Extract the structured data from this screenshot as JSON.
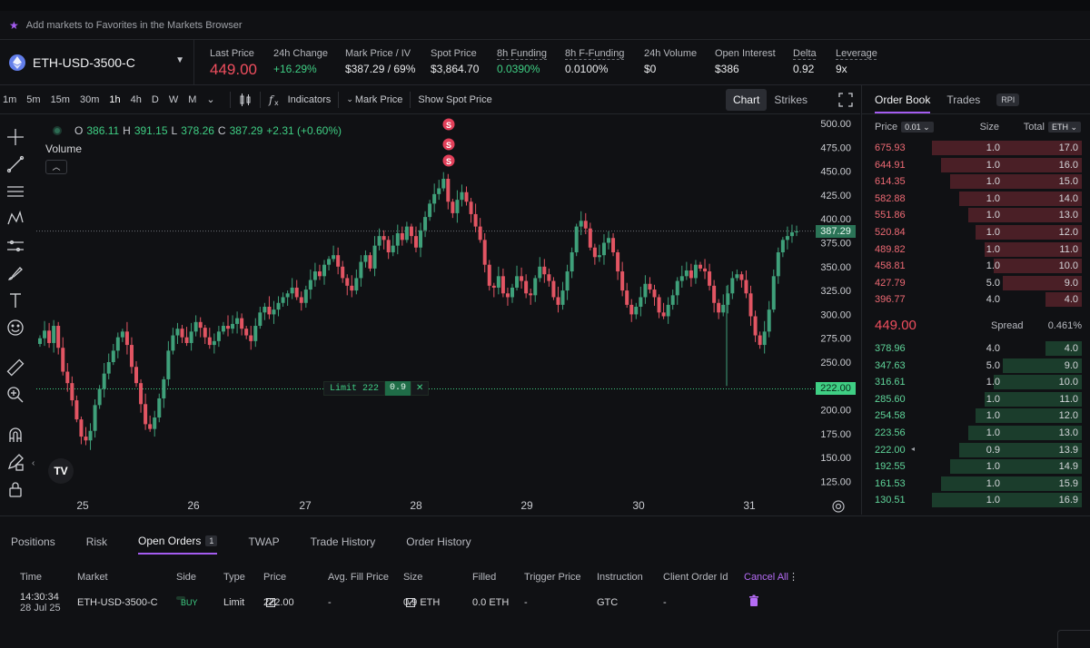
{
  "favorites_bar": {
    "text": "Add markets to Favorites in the Markets Browser"
  },
  "market": {
    "name": "ETH-USD-3500-C",
    "icon": "ethereum-icon"
  },
  "stats": [
    {
      "label": "Last Price",
      "value": "449.00",
      "style": "big"
    },
    {
      "label": "24h Change",
      "value": "+16.29%",
      "style": "green"
    },
    {
      "label": "Mark Price / IV",
      "value": "$387.29 / 69%",
      "style": "normal"
    },
    {
      "label": "Spot Price",
      "value": "$3,864.70",
      "style": "normal"
    },
    {
      "label": "8h Funding",
      "value": "0.0390%",
      "style": "green"
    },
    {
      "label": "8h F-Funding",
      "value": "0.0100%",
      "style": "normal"
    },
    {
      "label": "24h Volume",
      "value": "$0",
      "style": "normal"
    },
    {
      "label": "Open Interest",
      "value": "$386",
      "style": "normal"
    },
    {
      "label": "Delta",
      "value": "0.92",
      "style": "normal"
    },
    {
      "label": "Leverage",
      "value": "9x",
      "style": "normal"
    }
  ],
  "toolbar": {
    "timeframes": [
      "1m",
      "5m",
      "15m",
      "30m",
      "1h",
      "4h",
      "D",
      "W",
      "M"
    ],
    "active_timeframe": "1h",
    "indicators": "Indicators",
    "mark_price": "Mark Price",
    "show_spot": "Show Spot Price",
    "chart": "Chart",
    "strikes": "Strikes"
  },
  "chart": {
    "ohlc": {
      "o_label": "O",
      "o": "386.11",
      "h_label": "H",
      "h": "391.15",
      "l_label": "L",
      "l": "378.26",
      "c_label": "C",
      "c": "387.29",
      "change": "+2.31 (+0.60%)"
    },
    "volume_label": "Volume",
    "y_ticks": [
      "500.00",
      "475.00",
      "450.00",
      "425.00",
      "400.00",
      "375.00",
      "350.00",
      "325.00",
      "300.00",
      "275.00",
      "250.00",
      "225.00",
      "200.00",
      "175.00",
      "150.00",
      "125.00"
    ],
    "x_ticks": [
      "25",
      "26",
      "27",
      "28",
      "29",
      "30",
      "31"
    ],
    "current_price_tag": "387.29",
    "limit_price_tag": "222.00",
    "limit_order": {
      "label": "Limit 222",
      "qty": "0.9",
      "close": "✕"
    },
    "sell_markers": [
      "S",
      "S",
      "S"
    ],
    "tv_logo": "TV",
    "colors": {
      "up": "#3fa07a",
      "down": "#e25563"
    }
  },
  "order_book": {
    "tabs": [
      "Order Book",
      "Trades"
    ],
    "rpi": "RPI",
    "header": {
      "price": "Price",
      "tick": "0.01",
      "size": "Size",
      "total": "Total",
      "unit": "ETH"
    },
    "asks": [
      {
        "price": "675.93",
        "size": "1.0",
        "total": "17.0",
        "depth": 1.0
      },
      {
        "price": "644.91",
        "size": "1.0",
        "total": "16.0",
        "depth": 0.94
      },
      {
        "price": "614.35",
        "size": "1.0",
        "total": "15.0",
        "depth": 0.88
      },
      {
        "price": "582.88",
        "size": "1.0",
        "total": "14.0",
        "depth": 0.82
      },
      {
        "price": "551.86",
        "size": "1.0",
        "total": "13.0",
        "depth": 0.76
      },
      {
        "price": "520.84",
        "size": "1.0",
        "total": "12.0",
        "depth": 0.71
      },
      {
        "price": "489.82",
        "size": "1.0",
        "total": "11.0",
        "depth": 0.65
      },
      {
        "price": "458.81",
        "size": "1.0",
        "total": "10.0",
        "depth": 0.59
      },
      {
        "price": "427.79",
        "size": "5.0",
        "total": "9.0",
        "depth": 0.53
      },
      {
        "price": "396.77",
        "size": "4.0",
        "total": "4.0",
        "depth": 0.24
      }
    ],
    "last_price": "449.00",
    "spread_label": "Spread",
    "spread_value": "0.461%",
    "bids": [
      {
        "price": "378.96",
        "size": "4.0",
        "total": "4.0",
        "depth": 0.24
      },
      {
        "price": "347.63",
        "size": "5.0",
        "total": "9.0",
        "depth": 0.53
      },
      {
        "price": "316.61",
        "size": "1.0",
        "total": "10.0",
        "depth": 0.59
      },
      {
        "price": "285.60",
        "size": "1.0",
        "total": "11.0",
        "depth": 0.65
      },
      {
        "price": "254.58",
        "size": "1.0",
        "total": "12.0",
        "depth": 0.71
      },
      {
        "price": "223.56",
        "size": "1.0",
        "total": "13.0",
        "depth": 0.76
      },
      {
        "price": "222.00",
        "size": "0.9",
        "total": "13.9",
        "depth": 0.82,
        "mine": "◂"
      },
      {
        "price": "192.55",
        "size": "1.0",
        "total": "14.9",
        "depth": 0.88
      },
      {
        "price": "161.53",
        "size": "1.0",
        "total": "15.9",
        "depth": 0.94
      },
      {
        "price": "130.51",
        "size": "1.0",
        "total": "16.9",
        "depth": 1.0
      }
    ]
  },
  "bottom": {
    "tabs": [
      "Positions",
      "Risk",
      "Open Orders",
      "TWAP",
      "Trade History",
      "Order History"
    ],
    "active_tab": "Open Orders",
    "open_orders_count": "1",
    "columns": [
      "Time",
      "Market",
      "Side",
      "Type",
      "Price",
      "Avg. Fill Price",
      "Size",
      "Filled",
      "Trigger Price",
      "Instruction",
      "Client Order Id",
      "Cancel All"
    ],
    "orders": [
      {
        "time": "14:30:34",
        "date": "28 Jul 25",
        "market": "ETH-USD-3500-C",
        "side": "BUY",
        "type": "Limit",
        "price": "222.00",
        "avg_fill": "-",
        "size": "0.9 ETH",
        "filled": "0.0 ETH",
        "trigger": "-",
        "instruction": "GTC",
        "client_id": "-"
      }
    ]
  }
}
